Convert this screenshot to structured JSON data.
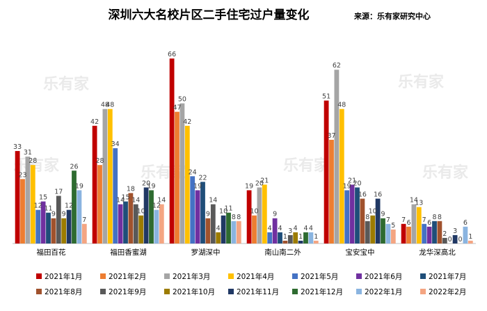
{
  "chart_data": {
    "type": "bar",
    "title": "深圳六大名校片区二手住宅过户量变化",
    "source": "来源：乐有家研究中心",
    "watermark": "乐有家",
    "categories": [
      "福田百花",
      "福田香蜜湖",
      "罗湖深中",
      "南山南二外",
      "宝安宝中",
      "龙华深高北"
    ],
    "ylim": [
      0,
      70
    ],
    "legend_position": "bottom",
    "series": [
      {
        "name": "2021年1月",
        "color": "#C00000",
        "values": [
          33,
          42,
          66,
          19,
          51,
          7
        ]
      },
      {
        "name": "2021年2月",
        "color": "#ED7D31",
        "values": [
          23,
          28,
          47,
          10,
          37,
          6
        ]
      },
      {
        "name": "2021年3月",
        "color": "#A5A5A5",
        "values": [
          31,
          48,
          50,
          20,
          62,
          14
        ]
      },
      {
        "name": "2021年4月",
        "color": "#FFC000",
        "values": [
          28,
          48,
          42,
          21,
          48,
          13
        ]
      },
      {
        "name": "2021年5月",
        "color": "#4472C4",
        "values": [
          12,
          34,
          24,
          4,
          19,
          7
        ]
      },
      {
        "name": "2021年6月",
        "color": "#7030A0",
        "values": [
          15,
          14,
          19,
          9,
          21,
          6
        ]
      },
      {
        "name": "2021年7月",
        "color": "#1F4E79",
        "values": [
          11,
          15,
          22,
          4,
          20,
          8
        ]
      },
      {
        "name": "2021年8月",
        "color": "#A0522D",
        "values": [
          9,
          18,
          9,
          1,
          16,
          8
        ]
      },
      {
        "name": "2021年9月",
        "color": "#595959",
        "values": [
          17,
          14,
          14,
          3,
          8,
          2
        ]
      },
      {
        "name": "2021年10月",
        "color": "#9C7C00",
        "values": [
          9,
          10,
          4,
          4,
          10,
          0
        ]
      },
      {
        "name": "2021年11月",
        "color": "#203864",
        "values": [
          12,
          20,
          10,
          1,
          16,
          3
        ]
      },
      {
        "name": "2021年12月",
        "color": "#2E6B30",
        "values": [
          26,
          19,
          11,
          4,
          9,
          0
        ]
      },
      {
        "name": "2022年1月",
        "color": "#8AB4E0",
        "values": [
          19,
          12,
          8,
          4,
          7,
          6
        ]
      },
      {
        "name": "2022年2月",
        "color": "#F4A582",
        "values": [
          7,
          14,
          8,
          1,
          5,
          1
        ]
      }
    ]
  }
}
